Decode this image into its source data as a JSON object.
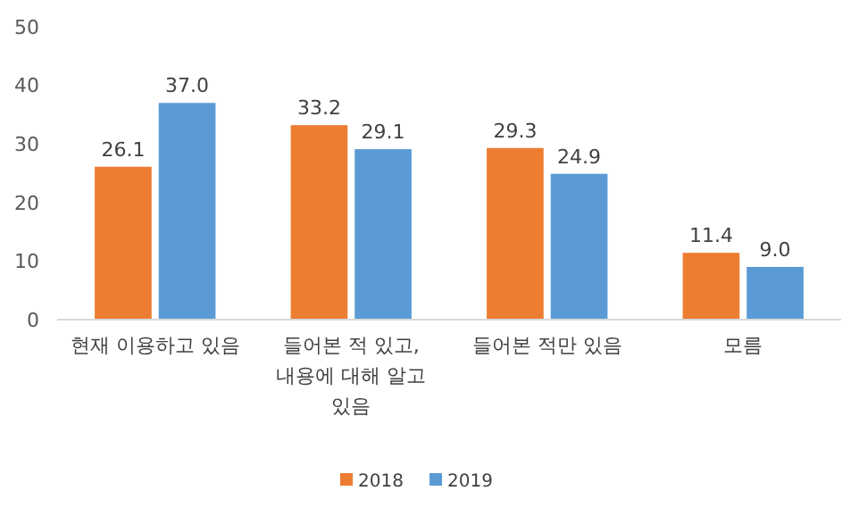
{
  "chart_data": {
    "type": "bar",
    "categories": [
      "현재 이용하고 있음",
      "들어본 적 있고, 내용에 대해 알고 있음",
      "들어본 적만 있음",
      "모름"
    ],
    "series": [
      {
        "name": "2018",
        "color": "#ed7d31",
        "values": [
          26.1,
          33.2,
          29.3,
          11.4
        ]
      },
      {
        "name": "2019",
        "color": "#5b9bd5",
        "values": [
          37.0,
          29.1,
          24.9,
          9.0
        ]
      }
    ],
    "value_labels": [
      [
        "26.1",
        "33.2",
        "29.3",
        "11.4"
      ],
      [
        "37.0",
        "29.1",
        "24.9",
        "9.0"
      ]
    ],
    "ylim": [
      0,
      50
    ],
    "yticks": [
      0,
      10,
      20,
      30,
      40,
      50
    ],
    "grid": false,
    "legend": "bottom"
  }
}
